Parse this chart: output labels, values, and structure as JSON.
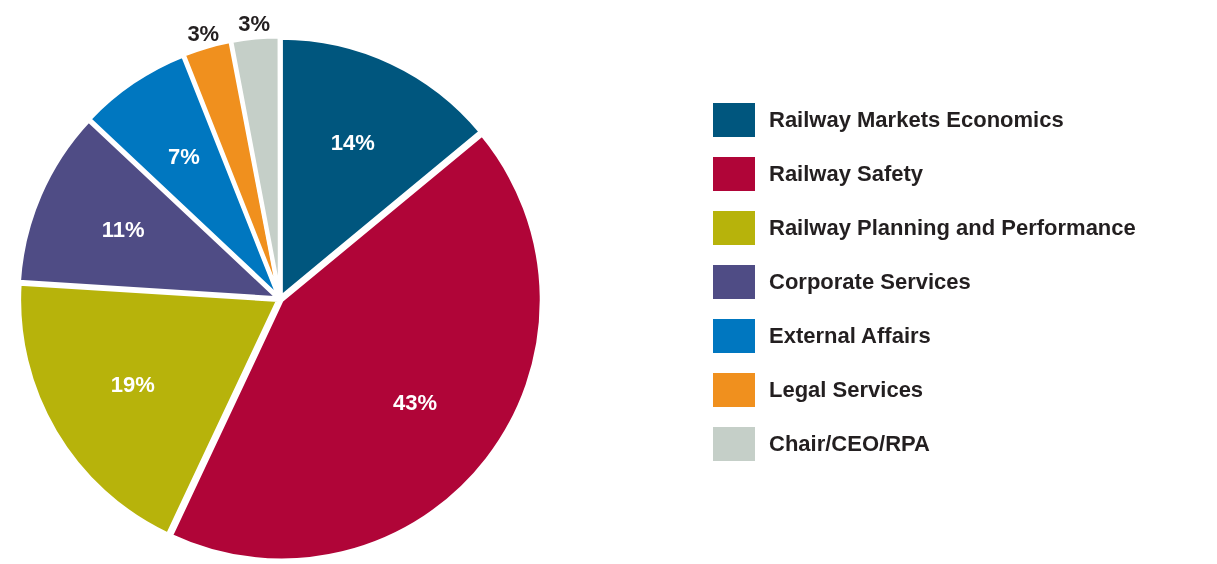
{
  "chart_data": {
    "type": "pie",
    "categories": [
      "Railway Markets Economics",
      "Railway Safety",
      "Railway Planning and Performance",
      "Corporate Services",
      "External Affairs",
      "Legal Services",
      "Chair/CEO/RPA"
    ],
    "values": [
      14,
      43,
      19,
      11,
      7,
      3,
      3
    ],
    "colors": [
      "#00567e",
      "#b00538",
      "#b7b30b",
      "#4f4c85",
      "#0077c0",
      "#f0901e",
      "#c5cfc8"
    ],
    "value_labels": [
      "14%",
      "43%",
      "19%",
      "11%",
      "7%",
      "3%",
      "3%"
    ],
    "legend": "right"
  }
}
